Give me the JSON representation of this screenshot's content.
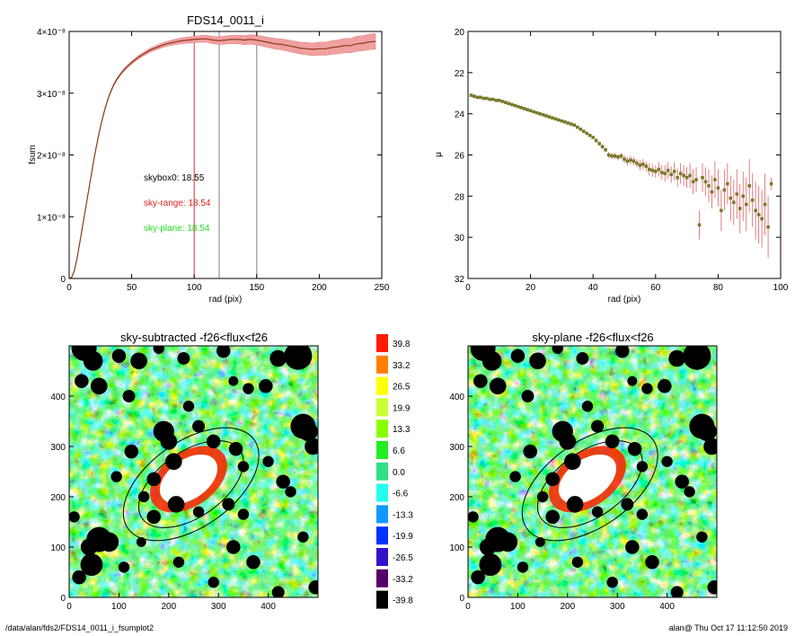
{
  "footer": {
    "path": "/data/alan/fds2/FDS14_0011_i_fsumplot2",
    "stamp": "alan@  Thu Oct 17 11:12:50 2019"
  },
  "chart_data": [
    {
      "type": "line",
      "title": "FDS14_0011_i",
      "xlabel": "rad (pix)",
      "ylabel": "fsum",
      "xlim": [
        0,
        250
      ],
      "ylim": [
        0,
        4e-08
      ],
      "xticks": [
        "0",
        "50",
        "100",
        "150",
        "200",
        "250"
      ],
      "yticks": [
        "0",
        "1×10⁻⁸",
        "2×10⁻⁸",
        "3×10⁻⁸",
        "4×10⁻⁸"
      ],
      "vlines": [
        {
          "x": 100,
          "color": "#e03030"
        },
        {
          "x": 120,
          "color": "#808080"
        },
        {
          "x": 150,
          "color": "#808080"
        }
      ],
      "annotations": [
        {
          "text": "skybox0: 18.55",
          "color": "#000000"
        },
        {
          "text": "sky-range: 18.54",
          "color": "#e02020"
        },
        {
          "text": "sky-plane: 18.54",
          "color": "#20dd20"
        }
      ],
      "series": [
        {
          "color": "#8b3a1a",
          "x": [
            0,
            2,
            4,
            6,
            8,
            10,
            12,
            14,
            16,
            18,
            20,
            22,
            24,
            26,
            28,
            30,
            32,
            34,
            36,
            38,
            40,
            44,
            48,
            52,
            56,
            60,
            65,
            70,
            75,
            80,
            85,
            90,
            95,
            100,
            105,
            110,
            115,
            120,
            125,
            130,
            135,
            140,
            145,
            150,
            155,
            160,
            165,
            170,
            175,
            180,
            185,
            190,
            195,
            200,
            205,
            210,
            215,
            220,
            225,
            230,
            235,
            240,
            245
          ],
          "y": [
            0,
            2e-10,
            1.2e-09,
            3e-09,
            5.2e-09,
            7.6e-09,
            1e-08,
            1.24e-08,
            1.48e-08,
            1.72e-08,
            1.95e-08,
            2.16e-08,
            2.36e-08,
            2.54e-08,
            2.7e-08,
            2.84e-08,
            2.96e-08,
            3.06e-08,
            3.15e-08,
            3.22e-08,
            3.28e-08,
            3.38e-08,
            3.46e-08,
            3.53e-08,
            3.59e-08,
            3.64e-08,
            3.7e-08,
            3.74e-08,
            3.78e-08,
            3.81e-08,
            3.83e-08,
            3.85e-08,
            3.86e-08,
            3.87e-08,
            3.88e-08,
            3.88e-08,
            3.86e-08,
            3.85e-08,
            3.86e-08,
            3.87e-08,
            3.87e-08,
            3.86e-08,
            3.87e-08,
            3.86e-08,
            3.84e-08,
            3.82e-08,
            3.8e-08,
            3.79e-08,
            3.77e-08,
            3.75e-08,
            3.73e-08,
            3.72e-08,
            3.71e-08,
            3.72e-08,
            3.72e-08,
            3.74e-08,
            3.75e-08,
            3.77e-08,
            3.77e-08,
            3.8e-08,
            3.81e-08,
            3.83e-08,
            3.84e-08
          ]
        }
      ],
      "error_band_color": "#f0a0a0"
    },
    {
      "type": "scatter",
      "title": "",
      "xlabel": "rad (pix)",
      "ylabel": "μ",
      "xlim": [
        0,
        100
      ],
      "ylim": [
        32,
        20
      ],
      "xticks": [
        "0",
        "20",
        "40",
        "60",
        "80",
        "100"
      ],
      "yticks": [
        "20",
        "22",
        "24",
        "26",
        "28",
        "30",
        "32"
      ],
      "series": [
        {
          "color": "#7a7a2a",
          "x": [
            1,
            2,
            3,
            4,
            5,
            6,
            7,
            8,
            9,
            10,
            11,
            12,
            13,
            14,
            15,
            16,
            17,
            18,
            19,
            20,
            21,
            22,
            23,
            24,
            25,
            26,
            27,
            28,
            29,
            30,
            31,
            32,
            33,
            34,
            35,
            36,
            37,
            38,
            39,
            40,
            41,
            42,
            43,
            44,
            45,
            46,
            47,
            48,
            49,
            50,
            51,
            52,
            53,
            54,
            55,
            56,
            57,
            58,
            59,
            60,
            61,
            62,
            63,
            64,
            65,
            66,
            67,
            68,
            69,
            70,
            71,
            72,
            73,
            74,
            75,
            76,
            77,
            78,
            79,
            80,
            81,
            82,
            83,
            84,
            85,
            86,
            87,
            88,
            89,
            90,
            91,
            92,
            93,
            94,
            95,
            96,
            97
          ],
          "y": [
            23.1,
            23.15,
            23.2,
            23.2,
            23.25,
            23.25,
            23.3,
            23.3,
            23.35,
            23.35,
            23.4,
            23.45,
            23.5,
            23.55,
            23.6,
            23.65,
            23.7,
            23.75,
            23.8,
            23.85,
            23.9,
            23.95,
            24.0,
            24.05,
            24.1,
            24.15,
            24.2,
            24.25,
            24.3,
            24.35,
            24.4,
            24.45,
            24.5,
            24.55,
            24.65,
            24.75,
            24.85,
            24.95,
            25.05,
            25.15,
            25.3,
            25.45,
            25.6,
            25.75,
            26.0,
            26.05,
            26.05,
            26.1,
            26.05,
            26.2,
            26.3,
            26.25,
            26.3,
            26.4,
            26.5,
            26.45,
            26.55,
            26.7,
            26.75,
            26.8,
            26.7,
            26.85,
            26.9,
            26.75,
            26.95,
            26.8,
            27.1,
            26.9,
            27.0,
            27.1,
            27.0,
            27.3,
            27.2,
            29.4,
            27.1,
            27.3,
            27.5,
            27.8,
            27.2,
            27.6,
            28.7,
            27.7,
            27.4,
            28.1,
            28.3,
            27.9,
            28.6,
            28.0,
            28.4,
            27.5,
            28.2,
            28.7,
            28.9,
            29.1,
            28.4,
            29.5,
            27.4
          ],
          "yerr": [
            0.05,
            0.05,
            0.05,
            0.05,
            0.05,
            0.05,
            0.05,
            0.05,
            0.05,
            0.05,
            0.05,
            0.05,
            0.05,
            0.05,
            0.05,
            0.05,
            0.05,
            0.05,
            0.05,
            0.05,
            0.05,
            0.05,
            0.05,
            0.05,
            0.05,
            0.05,
            0.05,
            0.05,
            0.05,
            0.05,
            0.05,
            0.05,
            0.05,
            0.05,
            0.05,
            0.05,
            0.05,
            0.05,
            0.05,
            0.05,
            0.1,
            0.1,
            0.1,
            0.1,
            0.15,
            0.15,
            0.15,
            0.15,
            0.15,
            0.2,
            0.2,
            0.2,
            0.2,
            0.2,
            0.25,
            0.25,
            0.25,
            0.3,
            0.3,
            0.3,
            0.35,
            0.35,
            0.4,
            0.4,
            0.4,
            0.45,
            0.45,
            0.5,
            0.5,
            0.5,
            0.6,
            0.6,
            0.6,
            0.7,
            0.7,
            0.7,
            0.8,
            0.8,
            0.9,
            0.9,
            1.0,
            1.0,
            1.0,
            1.1,
            1.1,
            1.2,
            1.2,
            1.2,
            1.3,
            1.3,
            1.3,
            1.4,
            1.4,
            1.4,
            1.5,
            1.5,
            0.3
          ]
        }
      ]
    },
    {
      "type": "heatmap",
      "title": "sky-subtracted -f26<flux<f26",
      "xlim": [
        0,
        500
      ],
      "ylim": [
        0,
        500
      ],
      "xticks": [
        "0",
        "100",
        "200",
        "300",
        "400"
      ],
      "yticks": [
        "0",
        "100",
        "200",
        "300",
        "400"
      ],
      "ellipses": [
        {
          "cx": 245,
          "cy": 225,
          "rx": 120,
          "ry": 65,
          "angle": -35
        },
        {
          "cx": 245,
          "cy": 225,
          "rx": 155,
          "ry": 85,
          "angle": -35
        }
      ]
    },
    {
      "type": "heatmap",
      "title": "sky-plane -f26<flux<f26",
      "xlim": [
        0,
        500
      ],
      "ylim": [
        0,
        500
      ],
      "xticks": [
        "0",
        "100",
        "200",
        "300",
        "400"
      ],
      "yticks": [
        "0",
        "100",
        "200",
        "300",
        "400"
      ],
      "ellipses": [
        {
          "cx": 245,
          "cy": 225,
          "rx": 120,
          "ry": 65,
          "angle": -35
        },
        {
          "cx": 245,
          "cy": 225,
          "rx": 155,
          "ry": 85,
          "angle": -35
        }
      ]
    },
    {
      "type": "colorbar",
      "levels": [
        {
          "label": "39.8",
          "color": "#ff1a00"
        },
        {
          "label": "33.2",
          "color": "#ff8000"
        },
        {
          "label": "26.5",
          "color": "#ffff00"
        },
        {
          "label": "19.9",
          "color": "#ccff33"
        },
        {
          "label": "13.3",
          "color": "#88ff00"
        },
        {
          "label": "6.6",
          "color": "#22ee22"
        },
        {
          "label": "0.0",
          "color": "#33dd88"
        },
        {
          "label": "-6.6",
          "color": "#22ffee"
        },
        {
          "label": "-13.3",
          "color": "#1199ff"
        },
        {
          "label": "-19.9",
          "color": "#0033ff"
        },
        {
          "label": "-26.5",
          "color": "#3311cc"
        },
        {
          "label": "-33.2",
          "color": "#550066"
        },
        {
          "label": "-39.8",
          "color": "#000000"
        }
      ]
    }
  ]
}
